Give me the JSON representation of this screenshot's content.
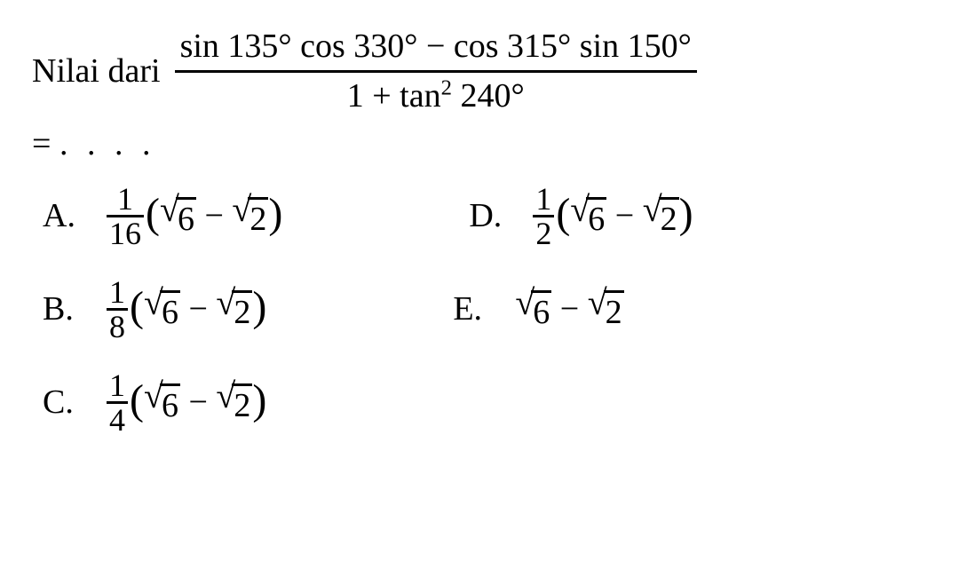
{
  "question": {
    "prefix": "Nilai dari",
    "numerator_parts": {
      "p1": "sin 135°",
      "p2": "cos 330°",
      "op1": "−",
      "p3": "cos 315°",
      "p4": "sin 150°"
    },
    "denominator_parts": {
      "d1": "1",
      "op": "+",
      "d2_base": "tan",
      "d2_exp": "2",
      "d3": "240°"
    },
    "equals": "=",
    "dots": ". . . ."
  },
  "sqrt_values": {
    "six": "6",
    "two": "2",
    "minus": "−"
  },
  "options": {
    "A": {
      "letter": "A.",
      "num": "1",
      "den": "16"
    },
    "B": {
      "letter": "B.",
      "num": "1",
      "den": "8"
    },
    "C": {
      "letter": "C.",
      "num": "1",
      "den": "4"
    },
    "D": {
      "letter": "D.",
      "num": "1",
      "den": "2"
    },
    "E": {
      "letter": "E."
    }
  },
  "styling": {
    "font_family": "Times New Roman",
    "font_size_main": 38,
    "font_color": "#000000",
    "background": "#ffffff",
    "bar_thickness": 3
  }
}
